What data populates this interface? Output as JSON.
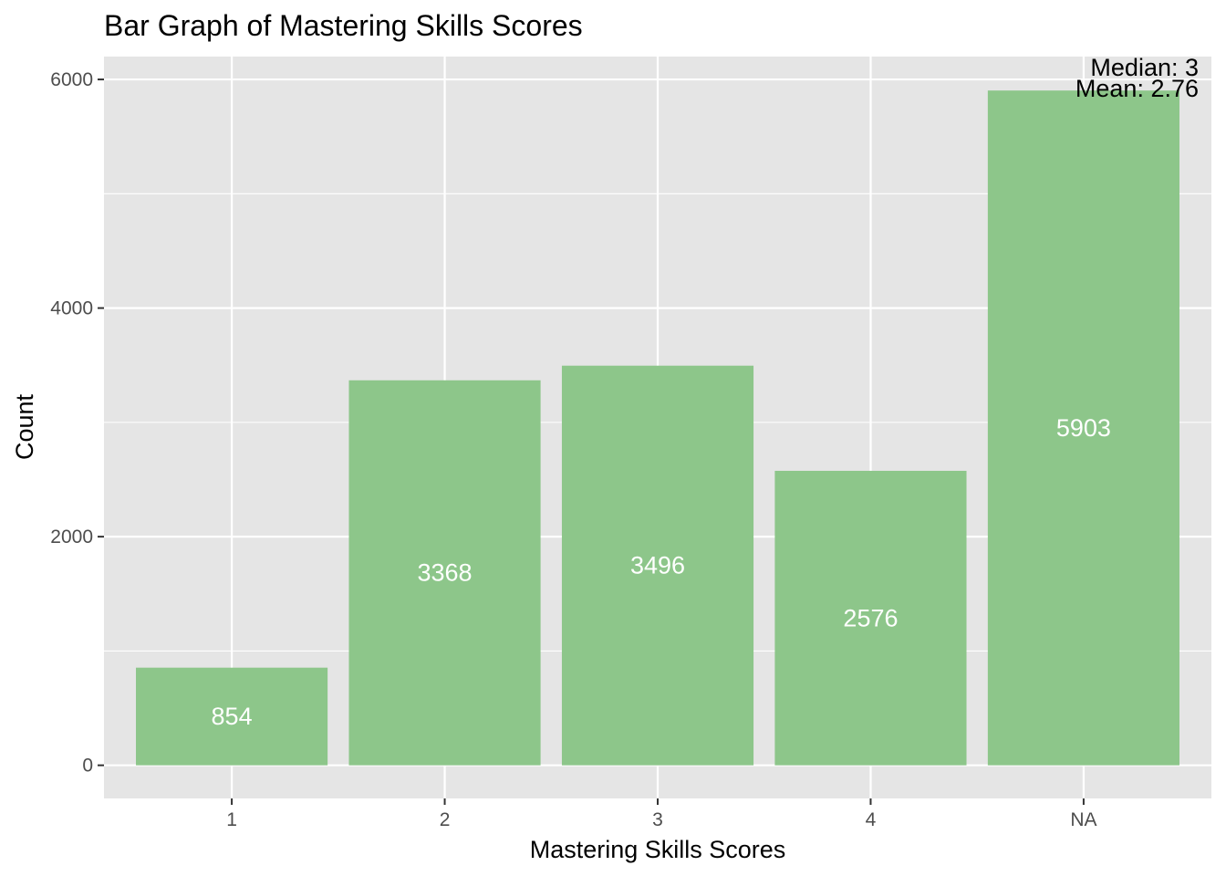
{
  "chart_data": {
    "type": "bar",
    "title": "Bar Graph of Mastering Skills Scores",
    "xlabel": "Mastering Skills Scores",
    "ylabel": "Count",
    "categories": [
      "1",
      "2",
      "3",
      "4",
      "NA"
    ],
    "values": [
      854,
      3368,
      3496,
      2576,
      5903
    ],
    "bar_labels": [
      "854",
      "3368",
      "3496",
      "2576",
      "5903"
    ],
    "ylim": [
      -290,
      6200
    ],
    "yticks": [
      0,
      2000,
      4000,
      6000
    ],
    "yticks_labels": [
      "0",
      "2000",
      "4000",
      "6000"
    ],
    "ygrid_minor": [
      1000,
      3000,
      5000
    ],
    "grid": true,
    "legend": "none",
    "annotations": [
      "Median: 3",
      "Mean: 2.76"
    ],
    "colors": {
      "bar": "#8dc68a",
      "panel": "#e5e5e5",
      "grid": "#ffffff",
      "bar_label": "#ffffff",
      "tick_label": "#4d4d4d",
      "text": "#000000"
    }
  }
}
